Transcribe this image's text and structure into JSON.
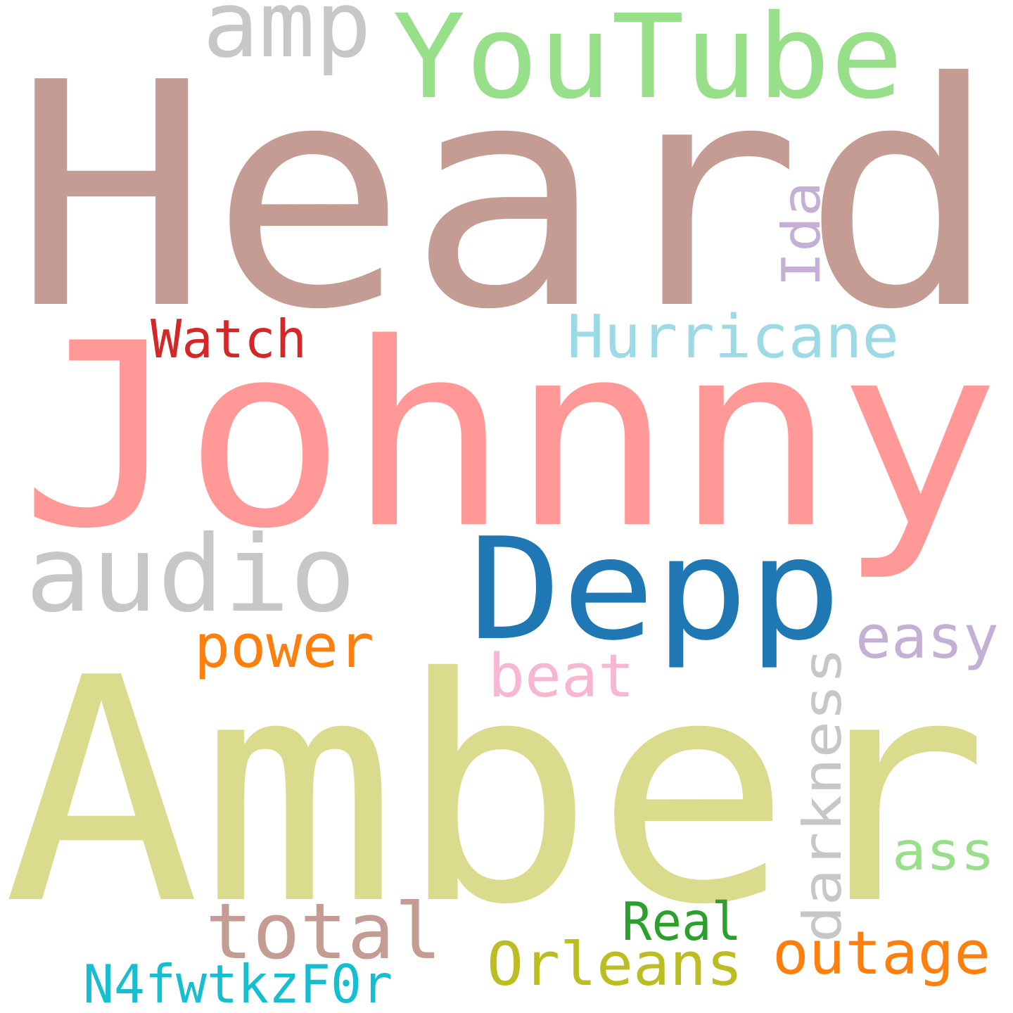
{
  "word_cloud": {
    "words": [
      {
        "id": "heard",
        "text": "Heard",
        "color": "#c49c94"
      },
      {
        "id": "johnny",
        "text": "Johnny",
        "color": "#ff9896"
      },
      {
        "id": "amber",
        "text": "Amber",
        "color": "#dbdb8d"
      },
      {
        "id": "depp",
        "text": "Depp",
        "color": "#1f77b4"
      },
      {
        "id": "youtube",
        "text": "YouTube",
        "color": "#98df8a"
      },
      {
        "id": "amp",
        "text": "amp",
        "color": "#c7c7c7"
      },
      {
        "id": "audio",
        "text": "audio",
        "color": "#c7c7c7"
      },
      {
        "id": "hurricane",
        "text": "Hurricane",
        "color": "#9edae5"
      },
      {
        "id": "ida",
        "text": "Ida",
        "color": "#c5b0d5"
      },
      {
        "id": "watch",
        "text": "Watch",
        "color": "#d62728"
      },
      {
        "id": "power",
        "text": "power",
        "color": "#ff7f0e"
      },
      {
        "id": "beat",
        "text": "beat",
        "color": "#f7b6d2"
      },
      {
        "id": "easy",
        "text": "easy",
        "color": "#c5b0d5"
      },
      {
        "id": "darkness",
        "text": "darkness",
        "color": "#c7c7c7"
      },
      {
        "id": "ass",
        "text": "ass",
        "color": "#98df8a"
      },
      {
        "id": "total",
        "text": "total",
        "color": "#c49c94"
      },
      {
        "id": "real",
        "text": "Real",
        "color": "#2ca02c"
      },
      {
        "id": "outage",
        "text": "outage",
        "color": "#ff7f0e"
      },
      {
        "id": "orleans",
        "text": "Orleans",
        "color": "#bcbd22"
      },
      {
        "id": "n4f",
        "text": "N4fwtkzF0r",
        "color": "#17becf"
      }
    ]
  }
}
